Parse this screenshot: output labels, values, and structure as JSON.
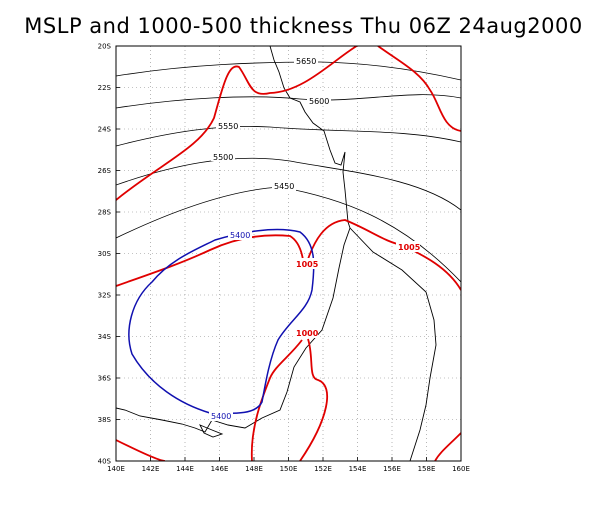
{
  "title": "MSLP and 1000-500 thickness Thu 06Z 24aug2000",
  "chart_data": {
    "type": "map",
    "lon_range": [
      140,
      160
    ],
    "lat_range": [
      -40,
      -20
    ],
    "x_ticks": [
      "140E",
      "142E",
      "144E",
      "146E",
      "148E",
      "150E",
      "152E",
      "154E",
      "156E",
      "158E",
      "160E"
    ],
    "y_ticks": [
      "20S",
      "22S",
      "24S",
      "26S",
      "28S",
      "30S",
      "32S",
      "34S",
      "36S",
      "38S",
      "40S"
    ],
    "grid": "dotted",
    "colors": {
      "frame": "#000000",
      "grid": "#888888",
      "coast": "#000000",
      "thickness": "#000000",
      "mslp": "#e00000",
      "low_thickness": "#1010b0"
    },
    "thickness_labels": [
      "5650",
      "5600",
      "5550",
      "5500",
      "5450",
      "5400",
      "5400"
    ],
    "mslp_labels": [
      "1005",
      "1005",
      "1000"
    ]
  }
}
